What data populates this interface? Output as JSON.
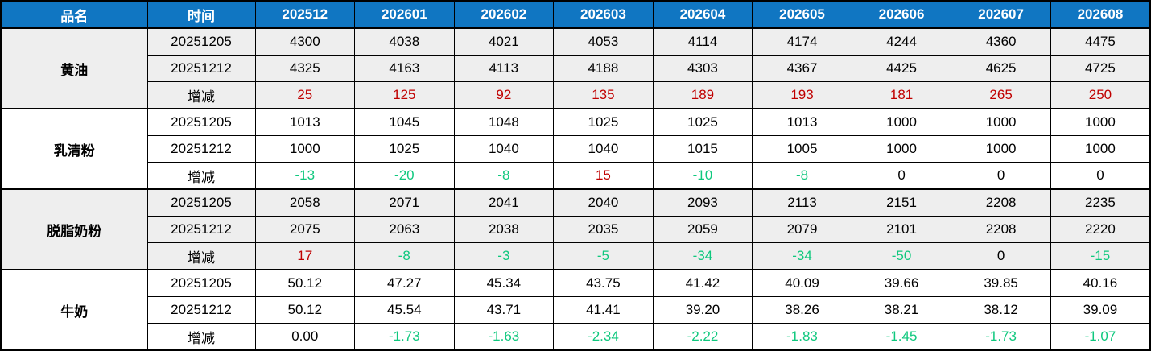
{
  "colors": {
    "header_bg": "#1076C2",
    "header_text": "#FFFFFF",
    "increase_text": "#C00000",
    "decrease_text": "#0FC87E",
    "neutral_text": "#000000",
    "shaded_row_bg": "#EEEEEE",
    "plain_row_bg": "#FFFFFF",
    "border": "#000000"
  },
  "chart_data": {
    "type": "table",
    "header": {
      "product_col": "品名",
      "time_col": "时间",
      "months": [
        "202512",
        "202601",
        "202602",
        "202603",
        "202604",
        "202605",
        "202606",
        "202607",
        "202608"
      ]
    },
    "delta_label": "增减",
    "groups": [
      {
        "product": "黄油",
        "shaded": true,
        "rows": [
          {
            "label": "20251205",
            "delta": false,
            "values": [
              "4300",
              "4038",
              "4021",
              "4053",
              "4114",
              "4174",
              "4244",
              "4360",
              "4475"
            ]
          },
          {
            "label": "20251212",
            "delta": false,
            "values": [
              "4325",
              "4163",
              "4113",
              "4188",
              "4303",
              "4367",
              "4425",
              "4625",
              "4725"
            ]
          },
          {
            "label": "增减",
            "delta": true,
            "values": [
              "25",
              "125",
              "92",
              "135",
              "189",
              "193",
              "181",
              "265",
              "250"
            ]
          }
        ]
      },
      {
        "product": "乳清粉",
        "shaded": false,
        "rows": [
          {
            "label": "20251205",
            "delta": false,
            "values": [
              "1013",
              "1045",
              "1048",
              "1025",
              "1025",
              "1013",
              "1000",
              "1000",
              "1000"
            ]
          },
          {
            "label": "20251212",
            "delta": false,
            "values": [
              "1000",
              "1025",
              "1040",
              "1040",
              "1015",
              "1005",
              "1000",
              "1000",
              "1000"
            ]
          },
          {
            "label": "增减",
            "delta": true,
            "values": [
              "-13",
              "-20",
              "-8",
              "15",
              "-10",
              "-8",
              "0",
              "0",
              "0"
            ]
          }
        ]
      },
      {
        "product": "脱脂奶粉",
        "shaded": true,
        "rows": [
          {
            "label": "20251205",
            "delta": false,
            "values": [
              "2058",
              "2071",
              "2041",
              "2040",
              "2093",
              "2113",
              "2151",
              "2208",
              "2235"
            ]
          },
          {
            "label": "20251212",
            "delta": false,
            "values": [
              "2075",
              "2063",
              "2038",
              "2035",
              "2059",
              "2079",
              "2101",
              "2208",
              "2220"
            ]
          },
          {
            "label": "增减",
            "delta": true,
            "values": [
              "17",
              "-8",
              "-3",
              "-5",
              "-34",
              "-34",
              "-50",
              "0",
              "-15"
            ]
          }
        ]
      },
      {
        "product": "牛奶",
        "shaded": false,
        "rows": [
          {
            "label": "20251205",
            "delta": false,
            "values": [
              "50.12",
              "47.27",
              "45.34",
              "43.75",
              "41.42",
              "40.09",
              "39.66",
              "39.85",
              "40.16"
            ]
          },
          {
            "label": "20251212",
            "delta": false,
            "values": [
              "50.12",
              "45.54",
              "43.71",
              "41.41",
              "39.20",
              "38.26",
              "38.21",
              "38.12",
              "39.09"
            ]
          },
          {
            "label": "增减",
            "delta": true,
            "values": [
              "0.00",
              "-1.73",
              "-1.63",
              "-2.34",
              "-2.22",
              "-1.83",
              "-1.45",
              "-1.73",
              "-1.07"
            ]
          }
        ]
      }
    ]
  }
}
